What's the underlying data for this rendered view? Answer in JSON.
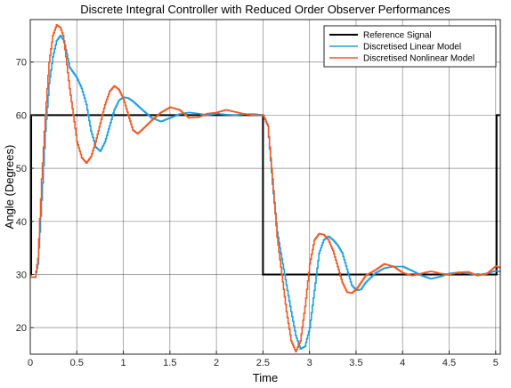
{
  "chart_data": {
    "type": "line",
    "title": "Discrete Integral Controller with Reduced Order Observer Performances",
    "xlabel": "Time",
    "ylabel": "Angle (Degrees)",
    "xlim": [
      0,
      5.05
    ],
    "ylim": [
      15,
      78
    ],
    "xticks": [
      "0",
      "0.5",
      "1",
      "1.5",
      "2",
      "2.5",
      "3",
      "3.5",
      "4",
      "4.5",
      "5"
    ],
    "yticks": [
      "20",
      "30",
      "40",
      "50",
      "60",
      "70"
    ],
    "grid": true,
    "legend_position": "top-right",
    "series": [
      {
        "name": "Reference Signal",
        "color": "#000000",
        "style": "step",
        "x": [
          0,
          0.01,
          0.01,
          2.5,
          2.5,
          5.01,
          5.01,
          5.05
        ],
        "y": [
          30,
          30,
          60,
          60,
          30,
          30,
          60,
          60
        ]
      },
      {
        "name": "Discretised Linear Model",
        "color": "#1f9fe0",
        "style": "stairs",
        "x": [
          0,
          0.05,
          0.08,
          0.12,
          0.16,
          0.2,
          0.24,
          0.28,
          0.32,
          0.36,
          0.39,
          0.42,
          0.46,
          0.5,
          0.55,
          0.6,
          0.65,
          0.7,
          0.75,
          0.8,
          0.85,
          0.9,
          0.95,
          1.0,
          1.05,
          1.1,
          1.2,
          1.3,
          1.4,
          1.5,
          1.6,
          1.7,
          1.8,
          1.9,
          2.0,
          2.1,
          2.2,
          2.3,
          2.4,
          2.5,
          2.55,
          2.6,
          2.65,
          2.7,
          2.75,
          2.8,
          2.85,
          2.9,
          2.95,
          3.0,
          3.05,
          3.1,
          3.15,
          3.2,
          3.25,
          3.3,
          3.35,
          3.4,
          3.45,
          3.5,
          3.55,
          3.6,
          3.7,
          3.8,
          3.9,
          4.0,
          4.1,
          4.2,
          4.3,
          4.4,
          4.5,
          4.6,
          4.7,
          4.8,
          4.9,
          5.0,
          5.05
        ],
        "y": [
          29.5,
          29.5,
          32,
          44,
          57,
          66,
          71,
          74,
          75,
          74,
          71.5,
          69,
          68,
          67,
          65,
          62,
          57,
          54,
          53.2,
          55,
          58,
          61,
          62.8,
          63.4,
          63.2,
          62.6,
          61,
          59.5,
          58.8,
          59.5,
          60.2,
          60.5,
          60.3,
          60,
          60.3,
          60.1,
          60,
          60.2,
          60.2,
          60,
          58,
          47,
          38,
          33,
          28,
          23,
          18.5,
          16,
          16.5,
          20,
          27,
          34,
          36.5,
          37.2,
          36.5,
          35.5,
          34,
          31,
          28,
          27,
          27.2,
          28.5,
          30.2,
          31.2,
          31.5,
          31.5,
          30.7,
          29.8,
          29.2,
          29.6,
          30.2,
          30.4,
          30.2,
          29.9,
          30.2,
          30.7,
          30.5
        ]
      },
      {
        "name": "Discretised Nonlinear Model",
        "color": "#ee5a24",
        "style": "stairs",
        "x": [
          0,
          0.05,
          0.08,
          0.12,
          0.16,
          0.2,
          0.24,
          0.28,
          0.32,
          0.35,
          0.38,
          0.42,
          0.46,
          0.5,
          0.55,
          0.6,
          0.65,
          0.7,
          0.75,
          0.8,
          0.85,
          0.9,
          0.95,
          1.0,
          1.05,
          1.1,
          1.15,
          1.2,
          1.3,
          1.4,
          1.5,
          1.6,
          1.7,
          1.8,
          1.9,
          2.0,
          2.1,
          2.2,
          2.3,
          2.4,
          2.5,
          2.55,
          2.6,
          2.65,
          2.7,
          2.75,
          2.8,
          2.85,
          2.9,
          2.95,
          3.0,
          3.05,
          3.1,
          3.15,
          3.2,
          3.25,
          3.3,
          3.35,
          3.4,
          3.45,
          3.5,
          3.55,
          3.6,
          3.7,
          3.8,
          3.9,
          4.0,
          4.1,
          4.2,
          4.3,
          4.4,
          4.5,
          4.6,
          4.7,
          4.8,
          4.9,
          5.0,
          5.05
        ],
        "y": [
          29.5,
          29.5,
          33,
          48,
          60,
          70,
          75,
          77,
          76.5,
          75,
          71,
          65,
          60,
          55,
          52,
          51,
          52.2,
          55,
          58.5,
          62,
          64.5,
          65.5,
          64.8,
          63,
          60,
          57.2,
          56.5,
          57.3,
          59,
          60.5,
          61.5,
          61,
          59.5,
          59.6,
          60.3,
          60.5,
          61,
          60.6,
          60.2,
          60,
          60,
          58,
          48,
          37,
          30,
          23,
          17.5,
          15.5,
          17.5,
          24,
          32,
          36.5,
          37.7,
          37.5,
          36.5,
          34.5,
          31.5,
          28.5,
          26.7,
          26.5,
          27.2,
          28.5,
          29.8,
          30.8,
          32,
          31.5,
          30.3,
          29.8,
          30.2,
          30.6,
          30.2,
          30.0,
          30.4,
          30.5,
          29.8,
          30.1,
          31.6,
          31.2
        ]
      }
    ]
  }
}
